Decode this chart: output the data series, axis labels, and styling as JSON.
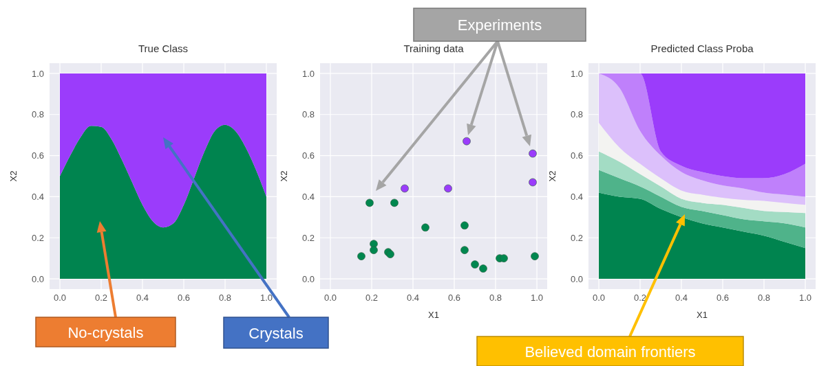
{
  "chart_data": [
    {
      "type": "area",
      "title": "True Class",
      "ylabel": "X2",
      "stacked": true,
      "grid": true,
      "x": [
        0,
        0.05,
        0.1,
        0.15,
        0.2,
        0.25,
        0.3,
        0.35,
        0.4,
        0.45,
        0.5,
        0.55,
        0.6,
        0.65,
        0.7,
        0.75,
        0.8,
        0.85,
        0.9,
        0.95,
        1.0
      ],
      "series": [
        {
          "color": "#00844f",
          "values": [
            0.5,
            0.6,
            0.69,
            0.745,
            0.74,
            0.68,
            0.58,
            0.47,
            0.36,
            0.28,
            0.25,
            0.27,
            0.36,
            0.49,
            0.62,
            0.72,
            0.75,
            0.72,
            0.64,
            0.53,
            0.4
          ]
        },
        {
          "color": "#9b3cfb",
          "values": [
            0.5,
            0.4,
            0.31,
            0.255,
            0.26,
            0.32,
            0.42,
            0.53,
            0.64,
            0.72,
            0.75,
            0.73,
            0.64,
            0.51,
            0.38,
            0.28,
            0.25,
            0.28,
            0.36,
            0.47,
            0.6
          ]
        }
      ],
      "xlim": [
        -0.05,
        1.05
      ],
      "ylim": [
        -0.05,
        1.05
      ],
      "xticks": [
        {
          "value": 0,
          "label": "0.0"
        },
        {
          "value": 0.2,
          "label": "0.2"
        },
        {
          "value": 0.4,
          "label": "0.4"
        },
        {
          "value": 0.6,
          "label": "0.6"
        },
        {
          "value": 0.8,
          "label": "0.8"
        },
        {
          "value": 1,
          "label": "1.0"
        }
      ],
      "yticks": [
        {
          "value": 0,
          "label": "0.0"
        },
        {
          "value": 0.2,
          "label": "0.2"
        },
        {
          "value": 0.4,
          "label": "0.4"
        },
        {
          "value": 0.6,
          "label": "0.6"
        },
        {
          "value": 0.8,
          "label": "0.8"
        },
        {
          "value": 1,
          "label": "1.0"
        }
      ],
      "annotations": [
        "No-crystals",
        "Crystals"
      ]
    },
    {
      "type": "scatter",
      "title": "Training data",
      "xlabel": "X1",
      "ylabel": "X2",
      "marker": "circle",
      "grid": true,
      "series": [
        {
          "color": "#00874f",
          "x": [
            0.15,
            0.19,
            0.21,
            0.21,
            0.28,
            0.29,
            0.31,
            0.46,
            0.65,
            0.65,
            0.7,
            0.74,
            0.82,
            0.84,
            0.99
          ],
          "values": [
            0.11,
            0.37,
            0.17,
            0.14,
            0.13,
            0.12,
            0.37,
            0.25,
            0.26,
            0.14,
            0.07,
            0.05,
            0.1,
            0.1,
            0.11
          ]
        },
        {
          "color": "#9b3cfb",
          "x": [
            0.36,
            0.57,
            0.66,
            0.98,
            0.98
          ],
          "values": [
            0.44,
            0.44,
            0.67,
            0.61,
            0.47
          ]
        }
      ],
      "xlim": [
        -0.05,
        1.05
      ],
      "ylim": [
        -0.05,
        1.05
      ],
      "xticks": [
        {
          "value": 0,
          "label": "0.0"
        },
        {
          "value": 0.2,
          "label": "0.2"
        },
        {
          "value": 0.4,
          "label": "0.4"
        },
        {
          "value": 0.6,
          "label": "0.6"
        },
        {
          "value": 0.8,
          "label": "0.8"
        },
        {
          "value": 1,
          "label": "1.0"
        }
      ],
      "yticks": [
        {
          "value": 0,
          "label": "0.0"
        },
        {
          "value": 0.2,
          "label": "0.2"
        },
        {
          "value": 0.4,
          "label": "0.4"
        },
        {
          "value": 0.6,
          "label": "0.6"
        },
        {
          "value": 0.8,
          "label": "0.8"
        },
        {
          "value": 1,
          "label": "1.0"
        }
      ],
      "annotations": [
        "Experiments"
      ]
    },
    {
      "type": "area",
      "title": "Predicted Class Proba",
      "xlabel": "X1",
      "ylabel": "X2",
      "stacked": true,
      "grid": true,
      "x": [
        0,
        0.1,
        0.2,
        0.3,
        0.4,
        0.5,
        0.6,
        0.7,
        0.8,
        0.9,
        1.0
      ],
      "series": [
        {
          "color": "#00844f",
          "values": [
            0.42,
            0.4,
            0.39,
            0.34,
            0.3,
            0.27,
            0.25,
            0.23,
            0.21,
            0.18,
            0.15
          ]
        },
        {
          "color": "#4fb38a",
          "values": [
            0.11,
            0.09,
            0.06,
            0.06,
            0.05,
            0.06,
            0.06,
            0.06,
            0.07,
            0.09,
            0.1
          ]
        },
        {
          "color": "#a3dcc4",
          "values": [
            0.09,
            0.08,
            0.06,
            0.05,
            0.04,
            0.04,
            0.05,
            0.055,
            0.05,
            0.055,
            0.07
          ]
        },
        {
          "color": "#f3f3f1",
          "values": [
            0.14,
            0.07,
            0.05,
            0.04,
            0.04,
            0.04,
            0.035,
            0.04,
            0.05,
            0.045,
            0.04
          ]
        },
        {
          "color": "#dcc0fb",
          "values": [
            0.24,
            0.29,
            0.16,
            0.11,
            0.09,
            0.07,
            0.06,
            0.055,
            0.04,
            0.04,
            0.04
          ]
        },
        {
          "color": "#bf80fb",
          "values": [
            0,
            0.07,
            0.28,
            0.02,
            0.03,
            0.04,
            0.045,
            0.05,
            0.07,
            0.1,
            0.16
          ]
        },
        {
          "color": "#9b3cfb",
          "values": [
            0,
            0,
            0,
            0.38,
            0.45,
            0.48,
            0.5,
            0.51,
            0.51,
            0.49,
            0.44
          ]
        }
      ],
      "xlim": [
        -0.05,
        1.05
      ],
      "ylim": [
        -0.05,
        1.05
      ],
      "xticks": [
        {
          "value": 0,
          "label": "0.0"
        },
        {
          "value": 0.2,
          "label": "0.2"
        },
        {
          "value": 0.4,
          "label": "0.4"
        },
        {
          "value": 0.6,
          "label": "0.6"
        },
        {
          "value": 0.8,
          "label": "0.8"
        },
        {
          "value": 1,
          "label": "1.0"
        }
      ],
      "yticks": [
        {
          "value": 0,
          "label": "0.0"
        },
        {
          "value": 0.2,
          "label": "0.2"
        },
        {
          "value": 0.4,
          "label": "0.4"
        },
        {
          "value": 0.6,
          "label": "0.6"
        },
        {
          "value": 0.8,
          "label": "0.8"
        },
        {
          "value": 1,
          "label": "1.0"
        }
      ],
      "annotations": [
        "Believed domain frontiers"
      ]
    }
  ]
}
